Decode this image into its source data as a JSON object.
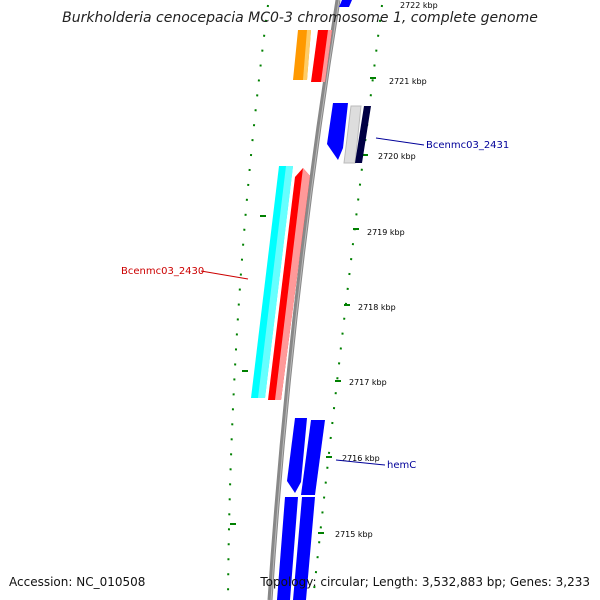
{
  "title": "Burkholderia cenocepacia MC0-3 chromosome 1, complete genome",
  "ticks": [
    "2722 kbp",
    "2721 kbp",
    "2720 kbp",
    "2719 kbp",
    "2718 kbp",
    "2717 kbp",
    "2716 kbp",
    "2715 kbp"
  ],
  "genes": [
    {
      "label": "Bcenmc03_2431"
    },
    {
      "label": "Bcenmc03_2430"
    },
    {
      "label": "hemC"
    }
  ],
  "footer": {
    "accession": "Accession: NC_010508",
    "summary": "Topology: circular; Length: 3,532,883 bp; Genes: 3,233"
  },
  "colors": {
    "orange": "#ff9900",
    "red": "#ff0000",
    "blue": "#0000ff",
    "cyan": "#00ffff",
    "backbone": "#888888",
    "tick": "#008000",
    "label_blue": "#000099",
    "label_red": "#cc0000"
  }
}
